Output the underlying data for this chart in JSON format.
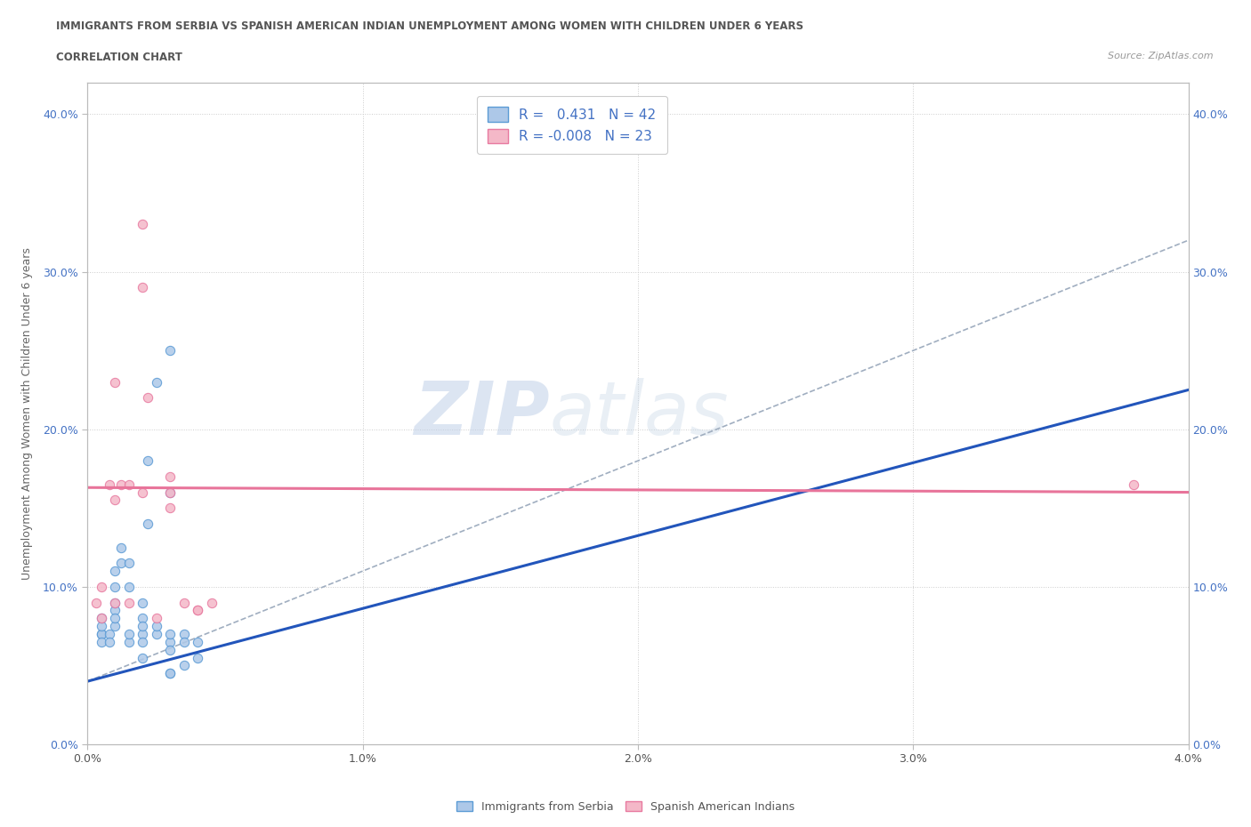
{
  "title_line1": "IMMIGRANTS FROM SERBIA VS SPANISH AMERICAN INDIAN UNEMPLOYMENT AMONG WOMEN WITH CHILDREN UNDER 6 YEARS",
  "title_line2": "CORRELATION CHART",
  "source_text": "Source: ZipAtlas.com",
  "ylabel": "Unemployment Among Women with Children Under 6 years",
  "xlim": [
    0.0,
    0.04
  ],
  "ylim": [
    0.0,
    0.42
  ],
  "xticks": [
    0.0,
    0.01,
    0.02,
    0.03,
    0.04
  ],
  "xtick_labels": [
    "0.0%",
    "1.0%",
    "2.0%",
    "3.0%",
    "4.0%"
  ],
  "yticks": [
    0.0,
    0.1,
    0.2,
    0.3,
    0.4
  ],
  "ytick_labels": [
    "0.0%",
    "10.0%",
    "20.0%",
    "30.0%",
    "40.0%"
  ],
  "serbia_color": "#adc8e8",
  "serbia_edge_color": "#5b9bd5",
  "spanish_color": "#f4b8c8",
  "spanish_edge_color": "#e87aa0",
  "serbia_R": 0.431,
  "serbia_N": 42,
  "spanish_R": -0.008,
  "spanish_N": 23,
  "blue_line_color": "#2255bb",
  "pink_line_color": "#e8749a",
  "dashed_line_color": "#a0aec0",
  "watermark_zip": "ZIP",
  "watermark_atlas": "atlas",
  "legend_serbia_label": "Immigrants from Serbia",
  "legend_spanish_label": "Spanish American Indians",
  "serbia_x": [
    0.0005,
    0.0005,
    0.0005,
    0.0005,
    0.0005,
    0.0008,
    0.0008,
    0.001,
    0.001,
    0.001,
    0.001,
    0.001,
    0.001,
    0.0012,
    0.0012,
    0.0015,
    0.0015,
    0.0015,
    0.0015,
    0.002,
    0.002,
    0.002,
    0.002,
    0.002,
    0.002,
    0.0022,
    0.0022,
    0.0025,
    0.0025,
    0.0025,
    0.003,
    0.003,
    0.003,
    0.003,
    0.003,
    0.003,
    0.003,
    0.0035,
    0.0035,
    0.0035,
    0.004,
    0.004
  ],
  "serbia_y": [
    0.07,
    0.07,
    0.065,
    0.075,
    0.08,
    0.07,
    0.065,
    0.085,
    0.09,
    0.1,
    0.11,
    0.075,
    0.08,
    0.115,
    0.125,
    0.1,
    0.065,
    0.07,
    0.115,
    0.07,
    0.08,
    0.09,
    0.065,
    0.055,
    0.075,
    0.14,
    0.18,
    0.07,
    0.075,
    0.23,
    0.065,
    0.06,
    0.045,
    0.045,
    0.07,
    0.16,
    0.25,
    0.05,
    0.07,
    0.065,
    0.055,
    0.065
  ],
  "spanish_x": [
    0.0003,
    0.0005,
    0.0005,
    0.0008,
    0.001,
    0.001,
    0.001,
    0.0012,
    0.0015,
    0.0015,
    0.002,
    0.002,
    0.002,
    0.0022,
    0.0025,
    0.003,
    0.003,
    0.0035,
    0.004,
    0.004,
    0.0045,
    0.003,
    0.038
  ],
  "spanish_y": [
    0.09,
    0.08,
    0.1,
    0.165,
    0.155,
    0.09,
    0.23,
    0.165,
    0.165,
    0.09,
    0.33,
    0.16,
    0.29,
    0.22,
    0.08,
    0.16,
    0.17,
    0.09,
    0.085,
    0.085,
    0.09,
    0.15,
    0.165
  ],
  "blue_line_x": [
    0.0,
    0.04
  ],
  "blue_line_y": [
    0.04,
    0.225
  ],
  "pink_line_x": [
    0.0,
    0.04
  ],
  "pink_line_y": [
    0.163,
    0.16
  ],
  "dashed_line_x": [
    0.0,
    0.04
  ],
  "dashed_line_y": [
    0.04,
    0.32
  ]
}
